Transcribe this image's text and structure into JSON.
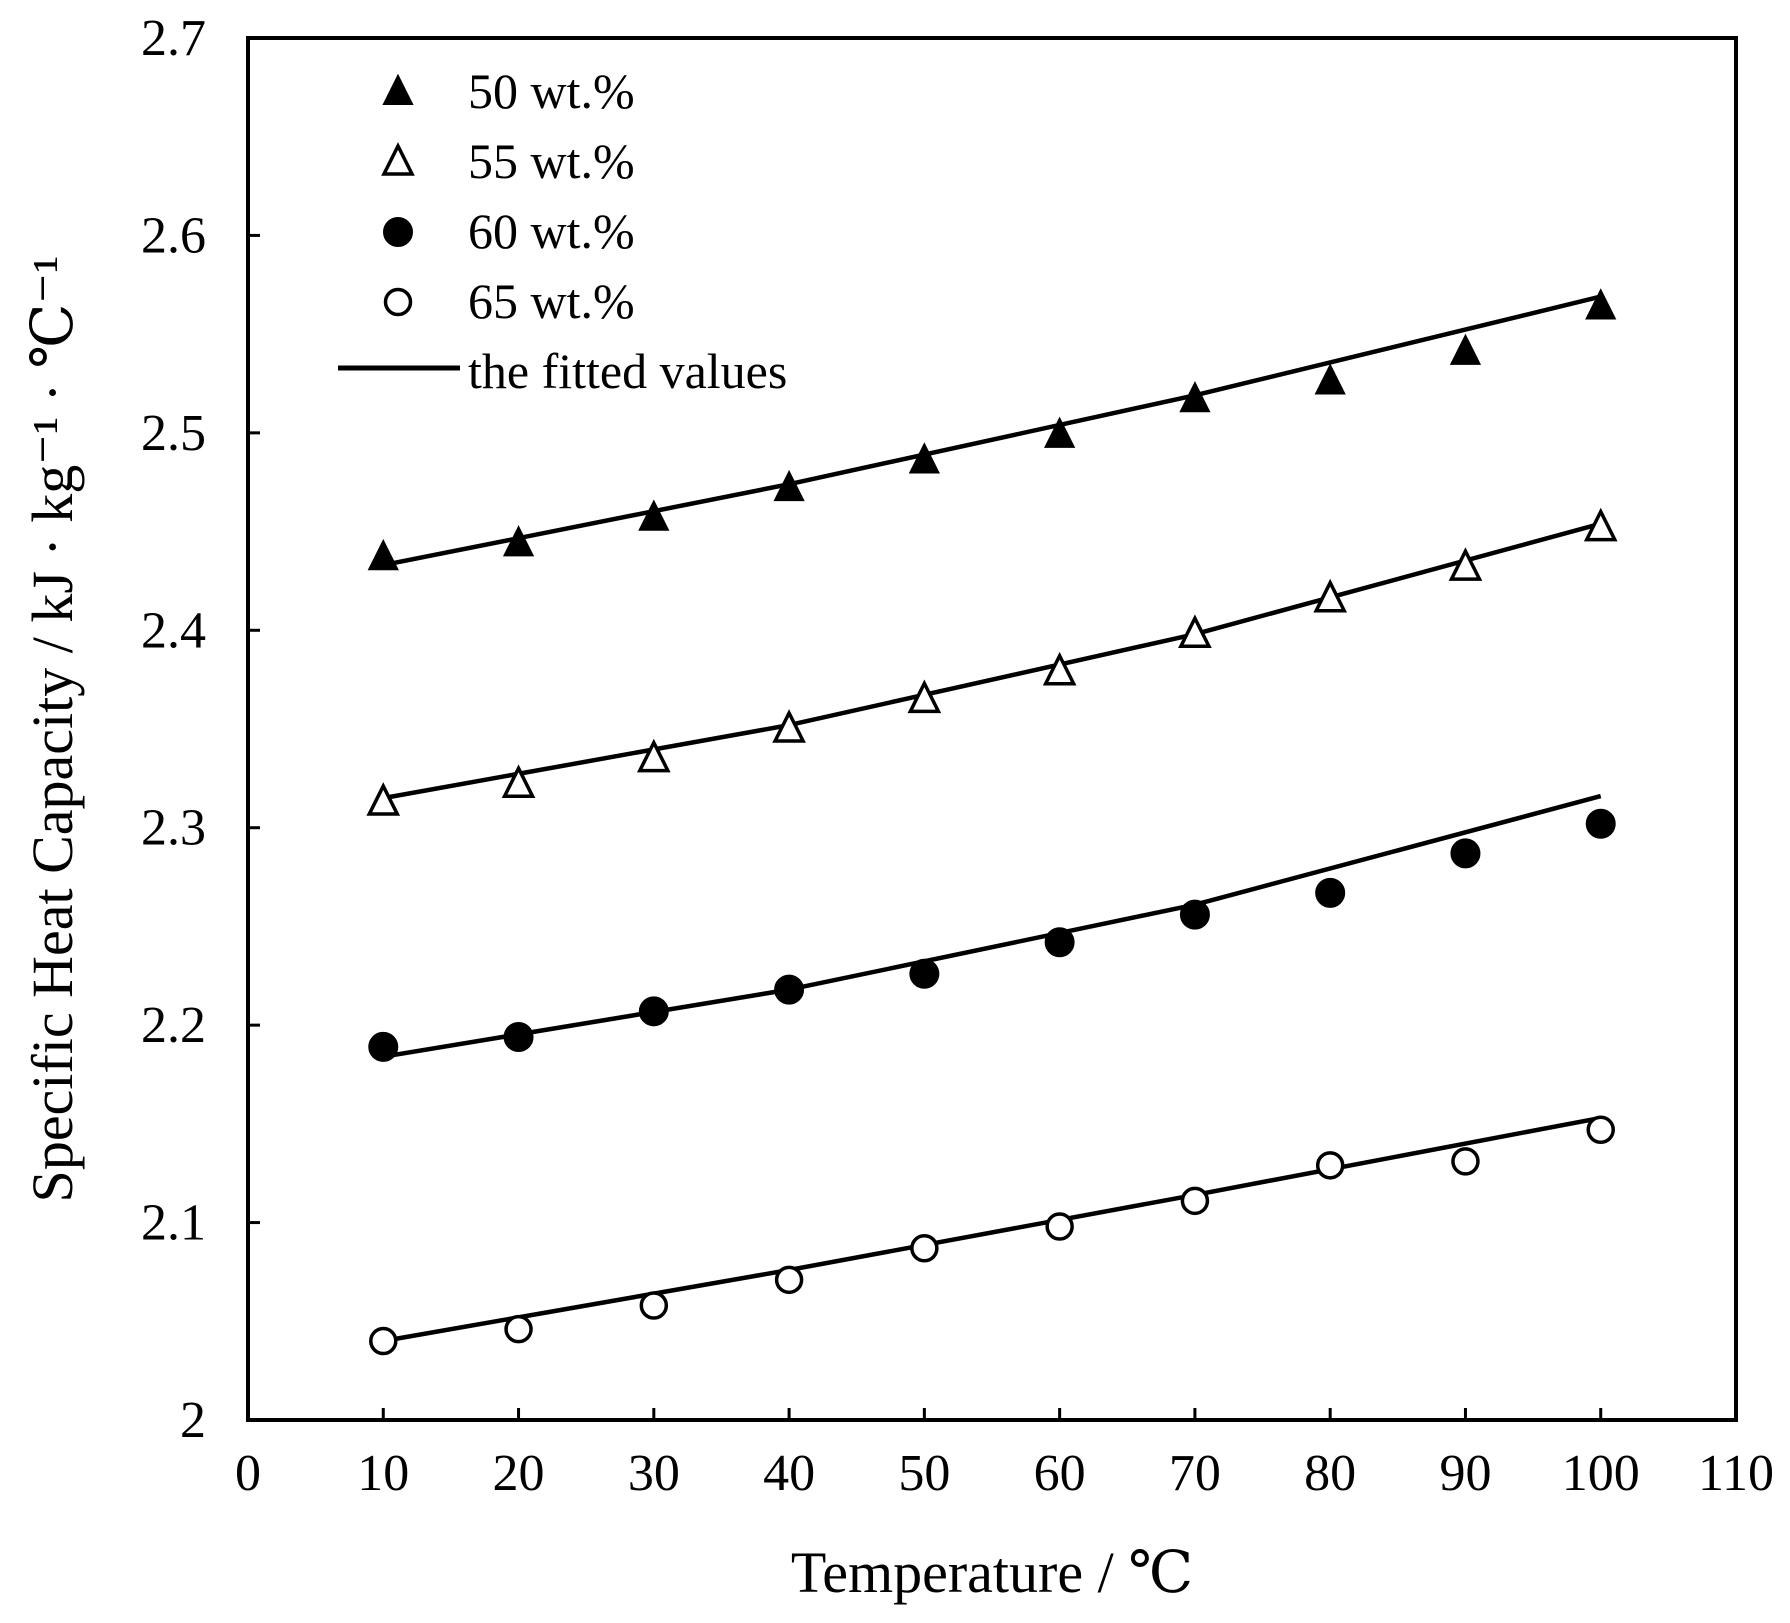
{
  "chart_data": {
    "type": "scatter",
    "title": "",
    "xlabel": "Temperature / ℃",
    "ylabel": "Specific Heat Capacity / kJ · kg⁻¹ · ℃⁻¹",
    "xlim": [
      0,
      110
    ],
    "ylim": [
      2.0,
      2.7
    ],
    "xticks": [
      0,
      10,
      20,
      30,
      40,
      50,
      60,
      70,
      80,
      90,
      100,
      110
    ],
    "yticks": [
      2.0,
      2.1,
      2.2,
      2.3,
      2.4,
      2.5,
      2.6,
      2.7
    ],
    "xtick_labels": [
      "0",
      "10",
      "20",
      "30",
      "40",
      "50",
      "60",
      "70",
      "80",
      "90",
      "100",
      "110"
    ],
    "ytick_labels": [
      "2",
      "2.1",
      "2.2",
      "2.3",
      "2.4",
      "2.5",
      "2.6",
      "2.7"
    ],
    "grid": false,
    "legend_position": "top-left",
    "x": [
      10,
      20,
      30,
      40,
      50,
      60,
      70,
      80,
      90,
      100
    ],
    "series": [
      {
        "name": "50 wt.%",
        "marker": "filled-triangle",
        "values": [
          2.437,
          2.444,
          2.457,
          2.472,
          2.486,
          2.499,
          2.517,
          2.526,
          2.541,
          2.564
        ]
      },
      {
        "name": "55 wt.%",
        "marker": "open-triangle",
        "values": [
          2.313,
          2.322,
          2.335,
          2.35,
          2.365,
          2.379,
          2.398,
          2.416,
          2.432,
          2.452
        ]
      },
      {
        "name": "60 wt.%",
        "marker": "filled-circle",
        "values": [
          2.189,
          2.194,
          2.207,
          2.218,
          2.226,
          2.242,
          2.256,
          2.267,
          2.287,
          2.302
        ]
      },
      {
        "name": "65 wt.%",
        "marker": "open-circle",
        "values": [
          2.04,
          2.046,
          2.058,
          2.071,
          2.087,
          2.098,
          2.111,
          2.129,
          2.131,
          2.147
        ]
      }
    ],
    "fitted_legend_label": "the fitted values",
    "fitted_lines": [
      {
        "name": "fit-50",
        "x": [
          10,
          40,
          70,
          100
        ],
        "values": [
          2.433,
          2.474,
          2.519,
          2.569
        ]
      },
      {
        "name": "fit-55",
        "x": [
          10,
          40,
          70,
          100
        ],
        "values": [
          2.315,
          2.352,
          2.398,
          2.454
        ]
      },
      {
        "name": "fit-60",
        "x": [
          10,
          40,
          70,
          100
        ],
        "values": [
          2.184,
          2.218,
          2.261,
          2.316
        ]
      },
      {
        "name": "fit-65",
        "x": [
          10,
          40,
          70,
          100
        ],
        "values": [
          2.04,
          2.076,
          2.114,
          2.153
        ]
      }
    ]
  }
}
